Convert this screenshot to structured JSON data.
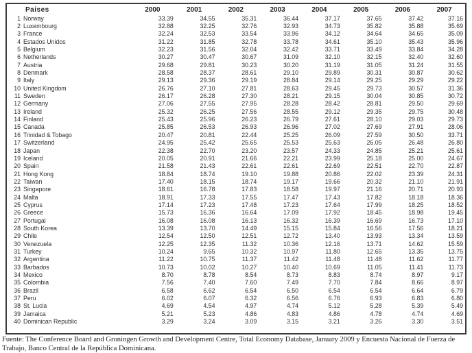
{
  "table": {
    "country_col_header": "Paises",
    "year_headers": [
      "2000",
      "2001",
      "2002",
      "2003",
      "2004",
      "2005",
      "2006",
      "2007"
    ],
    "rows": [
      {
        "rank": "1",
        "country": "Norway",
        "values": [
          "33.39",
          "34.55",
          "35.31",
          "36.44",
          "37.17",
          "37.65",
          "37.42",
          "37.16"
        ]
      },
      {
        "rank": "2",
        "country": "Luxembourg",
        "values": [
          "32.88",
          "32.25",
          "32.76",
          "32.93",
          "34.73",
          "35.82",
          "35.88",
          "35.69"
        ]
      },
      {
        "rank": "3",
        "country": "France",
        "values": [
          "32.24",
          "32.53",
          "33.54",
          "33.96",
          "34.12",
          "34.64",
          "34.65",
          "35.09"
        ]
      },
      {
        "rank": "4",
        "country": "Estados Unidos",
        "values": [
          "31.22",
          "31.85",
          "32.78",
          "33.78",
          "34.61",
          "35.10",
          "35.43",
          "35.96"
        ]
      },
      {
        "rank": "5",
        "country": "Belgium",
        "values": [
          "32.23",
          "31.56",
          "32.04",
          "32.42",
          "33.71",
          "33.49",
          "33.84",
          "34.28"
        ]
      },
      {
        "rank": "6",
        "country": "Netherlands",
        "values": [
          "30.27",
          "30.47",
          "30.67",
          "31.09",
          "32.10",
          "32.15",
          "32.40",
          "32.60"
        ]
      },
      {
        "rank": "7",
        "country": "Austria",
        "values": [
          "29.68",
          "29.81",
          "30.23",
          "30.20",
          "31.19",
          "31.05",
          "31.24",
          "31.55"
        ]
      },
      {
        "rank": "8",
        "country": "Denmark",
        "values": [
          "28.58",
          "28.37",
          "28.61",
          "29.10",
          "29.89",
          "30.31",
          "30.87",
          "30.62"
        ]
      },
      {
        "rank": "9",
        "country": "Italy",
        "values": [
          "29.13",
          "29.36",
          "29.19",
          "28.84",
          "29.14",
          "29.25",
          "29.29",
          "29.22"
        ]
      },
      {
        "rank": "10",
        "country": "United Kingdom",
        "values": [
          "26.76",
          "27.10",
          "27.81",
          "28.63",
          "29.45",
          "29.73",
          "30.57",
          "31.36"
        ]
      },
      {
        "rank": "11",
        "country": "Sweden",
        "values": [
          "26.17",
          "26.28",
          "27.30",
          "28.21",
          "29.15",
          "30.04",
          "30.85",
          "30.72"
        ]
      },
      {
        "rank": "12",
        "country": "Germany",
        "values": [
          "27.06",
          "27.55",
          "27.95",
          "28.28",
          "28.42",
          "28.81",
          "29.50",
          "29.69"
        ]
      },
      {
        "rank": "13",
        "country": "Ireland",
        "values": [
          "25.32",
          "26.25",
          "27.56",
          "28.55",
          "29.12",
          "29.35",
          "29.75",
          "30.48"
        ]
      },
      {
        "rank": "14",
        "country": "Finland",
        "values": [
          "25.43",
          "25.96",
          "26.23",
          "26.79",
          "27.61",
          "28.10",
          "29.03",
          "29.73"
        ]
      },
      {
        "rank": "15",
        "country": "Canada",
        "values": [
          "25.85",
          "26.53",
          "26.93",
          "26.96",
          "27.02",
          "27.69",
          "27.91",
          "28.06"
        ]
      },
      {
        "rank": "16",
        "country": "Trinidad & Tobago",
        "values": [
          "20.47",
          "20.81",
          "22.44",
          "25.25",
          "26.09",
          "27.59",
          "30.50",
          "33.71"
        ]
      },
      {
        "rank": "17",
        "country": "Switzerland",
        "values": [
          "24.95",
          "25.42",
          "25.65",
          "25.53",
          "25.63",
          "26.05",
          "26.48",
          "26.80"
        ]
      },
      {
        "rank": "18",
        "country": "Japan",
        "values": [
          "22.38",
          "22.70",
          "23.20",
          "23.57",
          "24.33",
          "24.85",
          "25.21",
          "25.61"
        ]
      },
      {
        "rank": "19",
        "country": "Iceland",
        "values": [
          "20.05",
          "20.91",
          "21.66",
          "22.21",
          "23.99",
          "25.18",
          "25.00",
          "24.67"
        ]
      },
      {
        "rank": "20",
        "country": "Spain",
        "values": [
          "21.58",
          "21.43",
          "22.61",
          "22.61",
          "22.69",
          "22.51",
          "22.70",
          "22.87"
        ]
      },
      {
        "rank": "21",
        "country": "Hong Kong",
        "values": [
          "18.84",
          "18.74",
          "19.10",
          "19.88",
          "20.86",
          "22.02",
          "23.39",
          "24.31"
        ]
      },
      {
        "rank": "22",
        "country": "Taiwan",
        "values": [
          "17.40",
          "18.15",
          "18.74",
          "19.17",
          "19.66",
          "20.32",
          "21.10",
          "21.91"
        ]
      },
      {
        "rank": "23",
        "country": "Singapore",
        "values": [
          "18.61",
          "16.78",
          "17.83",
          "18.58",
          "19.97",
          "21.16",
          "20.71",
          "20.93"
        ]
      },
      {
        "rank": "24",
        "country": "Malta",
        "values": [
          "18.91",
          "17.33",
          "17.55",
          "17.47",
          "17.43",
          "17.82",
          "18.18",
          "18.36"
        ]
      },
      {
        "rank": "25",
        "country": "Cyprus",
        "values": [
          "17.14",
          "17.23",
          "17.48",
          "17.23",
          "17.64",
          "17.99",
          "18.25",
          "18.52"
        ]
      },
      {
        "rank": "26",
        "country": "Greece",
        "values": [
          "15.73",
          "16.36",
          "16.64",
          "17.09",
          "17.92",
          "18.45",
          "18.98",
          "19.45"
        ]
      },
      {
        "rank": "27",
        "country": "Portugal",
        "values": [
          "16.08",
          "16.08",
          "16.13",
          "16.32",
          "16.39",
          "16.69",
          "16.73",
          "17.10"
        ]
      },
      {
        "rank": "28",
        "country": "South Korea",
        "values": [
          "13.39",
          "13.70",
          "14.49",
          "15.15",
          "15.84",
          "16.56",
          "17.56",
          "18.21"
        ]
      },
      {
        "rank": "29",
        "country": "Chile",
        "values": [
          "12.54",
          "12.50",
          "12.51",
          "12.72",
          "13.40",
          "13.93",
          "13.34",
          "13.59"
        ]
      },
      {
        "rank": "30",
        "country": "Venezuela",
        "values": [
          "12.25",
          "12.35",
          "11.32",
          "10.36",
          "12.16",
          "13.71",
          "14.62",
          "15.59"
        ]
      },
      {
        "rank": "31",
        "country": "Turkey",
        "values": [
          "10.24",
          "9.65",
          "10.32",
          "10.97",
          "11.80",
          "12.65",
          "13.35",
          "13.75"
        ]
      },
      {
        "rank": "32",
        "country": "Argentina",
        "values": [
          "11.22",
          "10.75",
          "11.37",
          "11.42",
          "11.48",
          "11.48",
          "11.62",
          "11.77"
        ]
      },
      {
        "rank": "33",
        "country": "Barbados",
        "values": [
          "10.73",
          "10.02",
          "10.27",
          "10.40",
          "10.69",
          "11.05",
          "11.41",
          "11.73"
        ]
      },
      {
        "rank": "34",
        "country": "Mexico",
        "values": [
          "8.70",
          "8.78",
          "8.54",
          "8.73",
          "8.83",
          "8.74",
          "8.97",
          "9.17"
        ]
      },
      {
        "rank": "35",
        "country": "Colombia",
        "values": [
          "7.56",
          "7.40",
          "7.60",
          "7.49",
          "7.70",
          "7.84",
          "8.66",
          "8.97"
        ]
      },
      {
        "rank": "36",
        "country": "Brazil",
        "values": [
          "6.58",
          "6.62",
          "6.54",
          "6.50",
          "6.54",
          "6.54",
          "6.64",
          "6.79"
        ]
      },
      {
        "rank": "37",
        "country": "Peru",
        "values": [
          "6.02",
          "6.07",
          "6.32",
          "6.56",
          "6.76",
          "6.93",
          "6.83",
          "6.80"
        ]
      },
      {
        "rank": "38",
        "country": "St. Lucia",
        "values": [
          "4.69",
          "4.54",
          "4.97",
          "4.74",
          "5.12",
          "5.28",
          "5.39",
          "5.49"
        ]
      },
      {
        "rank": "39",
        "country": "Jamaica",
        "values": [
          "5.21",
          "5.23",
          "4.86",
          "4.83",
          "4.86",
          "4.78",
          "4.74",
          "4.69"
        ]
      },
      {
        "rank": "40",
        "country": "Dominican Republic",
        "values": [
          "3.29",
          "3.24",
          "3.09",
          "3.15",
          "3.21",
          "3.26",
          "3.30",
          "3.51"
        ]
      }
    ]
  },
  "footer": {
    "source_text": "Fuente: The Conference Board and Groningen Growth and Development Centre, Total Economy Database, January 2009 y Encuesta Nacional de Fuerza de Trabajo, Banco Central de la República Dominicana."
  }
}
